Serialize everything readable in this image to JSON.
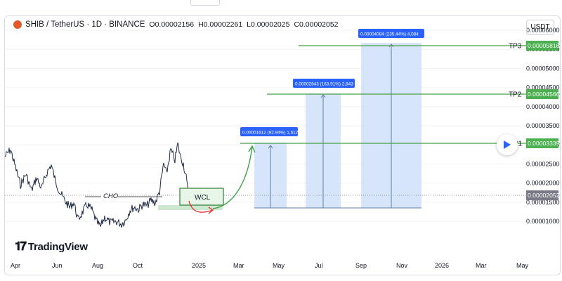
{
  "top_strip": {
    "left_text": "",
    "right_text": ""
  },
  "header": {
    "symbol": "SHIB / TetherUS · 1D · BINANCE",
    "open": "O0.00002156",
    "high": "H0.00002261",
    "low": "L0.00002025",
    "close": "C0.00002052"
  },
  "currency_button": "USDT",
  "brand": "TradingView",
  "price_axis": [
    "0.00006000",
    "0.00005500",
    "0.00005000",
    "0.00004500",
    "0.00004000",
    "0.00003500",
    "0.00003000",
    "0.00002500",
    "0.00002000",
    "0.00001500",
    "0.00001000"
  ],
  "time_axis": [
    "Apr",
    "Jun",
    "Aug",
    "Oct",
    "2025",
    "Mar",
    "May",
    "Jul",
    "Sep",
    "Nov",
    "2026",
    "Mar",
    "May"
  ],
  "current_price": "0.00002052",
  "targets": [
    {
      "label": "P1",
      "price": "0.00003339",
      "info": "0.00001612 (92.94%) 1,612"
    },
    {
      "label": "TP2",
      "price": "0.00004566",
      "info": "0.00002843 (163.91%) 2,843"
    },
    {
      "label": "TP3",
      "price": "0.00005816",
      "info": "0.00004084 (235.44%) 4,084"
    }
  ],
  "annotations": {
    "cho": "CHO",
    "wcl": "WCL"
  },
  "colors": {
    "green": "#43a047",
    "blue_box": "#cfe0f8",
    "label_blue": "#2962ff",
    "price_label_green": "#4caf50",
    "current_price_bg": "#787b86",
    "line_gray": "#7c7f88",
    "red": "#e53935"
  }
}
